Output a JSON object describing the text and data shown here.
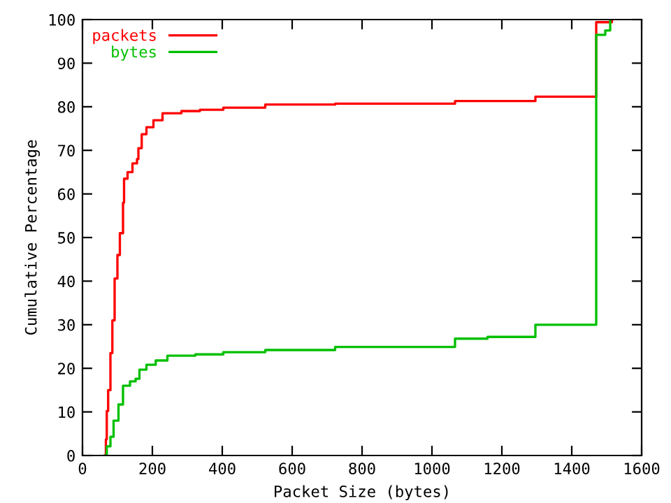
{
  "chart_data": {
    "type": "step",
    "xlabel": "Packet Size (bytes)",
    "ylabel": "Cumulative Percentage",
    "xlim": [
      0,
      1600
    ],
    "ylim": [
      0,
      100
    ],
    "xticks": [
      0,
      200,
      400,
      600,
      800,
      1000,
      1200,
      1400,
      1600
    ],
    "yticks": [
      0,
      10,
      20,
      30,
      40,
      50,
      60,
      70,
      80,
      90,
      100
    ],
    "grid": false,
    "legend": "top left",
    "series": [
      {
        "name": "packets",
        "color": "#ff0000",
        "x": [
          64,
          67,
          69.5,
          73.5,
          80,
          85.5,
          92,
          100,
          107,
          116,
          119,
          129,
          143,
          156,
          160,
          169.5,
          183,
          203,
          229,
          283,
          336,
          403,
          523,
          723,
          1066,
          1296,
          1470,
          1515
        ],
        "values": [
          0,
          3.7,
          10.2,
          15,
          23.5,
          31,
          40.6,
          46,
          51,
          58,
          63.5,
          65,
          67,
          68,
          70.5,
          73.7,
          75.3,
          76.9,
          78.5,
          79,
          79.3,
          79.8,
          80.5,
          80.7,
          81.3,
          82.3,
          99.4,
          100
        ]
      },
      {
        "name": "bytes",
        "color": "#00c000",
        "x": [
          64,
          69.5,
          80,
          89,
          103,
          116,
          136,
          152,
          163,
          183,
          209.5,
          243,
          323,
          403,
          523,
          723,
          1066,
          1159,
          1296,
          1470,
          1496,
          1510
        ],
        "values": [
          0,
          2.1,
          4.3,
          8,
          11.7,
          16,
          17,
          17.6,
          19.7,
          20.8,
          21.8,
          22.9,
          23.2,
          23.7,
          24.2,
          24.9,
          26.8,
          27.2,
          30,
          96.5,
          97.5,
          100
        ]
      }
    ]
  }
}
